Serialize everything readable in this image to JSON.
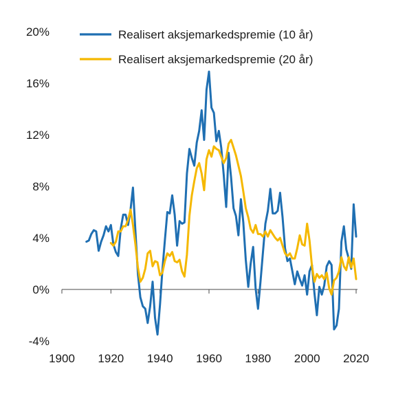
{
  "chart_data": {
    "type": "line",
    "title": "",
    "xlabel": "",
    "ylabel": "",
    "xlim": [
      1900,
      2020
    ],
    "ylim": [
      -4,
      20
    ],
    "x_ticks": [
      1900,
      1920,
      1940,
      1960,
      1980,
      2000,
      2020
    ],
    "x_tick_labels": [
      "1900",
      "1920",
      "1940",
      "1960",
      "1980",
      "2000",
      "2020"
    ],
    "y_ticks": [
      -4,
      0,
      4,
      8,
      12,
      16,
      20
    ],
    "y_tick_labels": [
      "-4%",
      "0%",
      "4%",
      "8%",
      "12%",
      "16%",
      "20%"
    ],
    "grid": false,
    "legend_position": "top",
    "series": [
      {
        "name": "Realisert aksjemarkedspremie (10 år)",
        "color": "#1f6fb2",
        "x": [
          1910,
          1911,
          1912,
          1913,
          1914,
          1915,
          1916,
          1917,
          1918,
          1919,
          1920,
          1921,
          1922,
          1923,
          1924,
          1925,
          1926,
          1927,
          1928,
          1929,
          1930,
          1931,
          1932,
          1933,
          1934,
          1935,
          1936,
          1937,
          1938,
          1939,
          1940,
          1941,
          1942,
          1943,
          1944,
          1945,
          1946,
          1947,
          1948,
          1949,
          1950,
          1951,
          1952,
          1953,
          1954,
          1955,
          1956,
          1957,
          1958,
          1959,
          1960,
          1961,
          1962,
          1963,
          1964,
          1965,
          1966,
          1967,
          1968,
          1969,
          1970,
          1971,
          1972,
          1973,
          1974,
          1975,
          1976,
          1977,
          1978,
          1979,
          1980,
          1981,
          1982,
          1983,
          1984,
          1985,
          1986,
          1987,
          1988,
          1989,
          1990,
          1991,
          1992,
          1993,
          1994,
          1995,
          1996,
          1997,
          1998,
          1999,
          2000,
          2001,
          2002,
          2003,
          2004,
          2005,
          2006,
          2007,
          2008,
          2009,
          2010,
          2011,
          2012,
          2013,
          2014,
          2015,
          2016,
          2017,
          2018,
          2019,
          2020
        ],
        "values": [
          3.7,
          3.8,
          4.3,
          4.6,
          4.5,
          3,
          3.7,
          4.2,
          4.9,
          4.5,
          5,
          3.5,
          2.9,
          2.6,
          4.7,
          5.8,
          5.8,
          5,
          6.2,
          7.9,
          4.5,
          1.2,
          -0.6,
          -1.3,
          -1.5,
          -2.6,
          -1.3,
          0.6,
          -2.2,
          -3.5,
          -1.2,
          1.5,
          3.8,
          6,
          5.9,
          7.3,
          5.8,
          3.4,
          5.3,
          5.1,
          5.2,
          9,
          10.9,
          10.2,
          9.6,
          11.4,
          12.3,
          13.9,
          11.6,
          15.5,
          16.9,
          14.1,
          13.7,
          11.5,
          12.3,
          11,
          8.9,
          6.4,
          10.6,
          8.7,
          6.3,
          5.7,
          4.2,
          7,
          5.2,
          2.3,
          0.2,
          2,
          3.3,
          0.1,
          -1.5,
          0.6,
          2.9,
          5.1,
          6.1,
          7.8,
          5.9,
          5.9,
          6.1,
          7.5,
          5.6,
          3.2,
          2.2,
          2.4,
          1.4,
          0.4,
          1.4,
          0.8,
          0.3,
          1.1,
          -0.4,
          1.4,
          1.9,
          -0.3,
          -2,
          0.2,
          -0.4,
          0.3,
          1.8,
          2.2,
          1.9,
          -3.1,
          -2.8,
          -1.5,
          3.7,
          4.9,
          3.1,
          2.4,
          1.6,
          6.6,
          4.1
        ]
      },
      {
        "name": "Realisert aksjemarkedspremie (20 år)",
        "color": "#f5b800",
        "x": [
          1920,
          1921,
          1922,
          1923,
          1924,
          1925,
          1926,
          1927,
          1928,
          1929,
          1930,
          1931,
          1932,
          1933,
          1934,
          1935,
          1936,
          1937,
          1938,
          1939,
          1940,
          1941,
          1942,
          1943,
          1944,
          1945,
          1946,
          1947,
          1948,
          1949,
          1950,
          1951,
          1952,
          1953,
          1954,
          1955,
          1956,
          1957,
          1958,
          1959,
          1960,
          1961,
          1962,
          1963,
          1964,
          1965,
          1966,
          1967,
          1968,
          1969,
          1970,
          1971,
          1972,
          1973,
          1974,
          1975,
          1976,
          1977,
          1978,
          1979,
          1980,
          1981,
          1982,
          1983,
          1984,
          1985,
          1986,
          1987,
          1988,
          1989,
          1990,
          1991,
          1992,
          1993,
          1994,
          1995,
          1996,
          1997,
          1998,
          1999,
          2000,
          2001,
          2002,
          2003,
          2004,
          2005,
          2006,
          2007,
          2008,
          2009,
          2010,
          2011,
          2012,
          2013,
          2014,
          2015,
          2016,
          2017,
          2018,
          2019,
          2020
        ],
        "values": [
          3.6,
          3.4,
          3.7,
          4.5,
          4.5,
          4.9,
          4.9,
          5.4,
          6.2,
          5,
          3.5,
          1.7,
          0.6,
          0.9,
          1.6,
          2.8,
          3,
          1.8,
          2.2,
          2.1,
          1.1,
          1.3,
          2.2,
          2.8,
          2.6,
          2.9,
          2.2,
          2.1,
          2.3,
          1.4,
          1,
          2.7,
          5.7,
          7.3,
          8.4,
          9.4,
          9.8,
          9,
          7.7,
          10.1,
          10.8,
          10.3,
          11.1,
          10.9,
          10.8,
          10.3,
          9.8,
          10.2,
          11.3,
          11.6,
          11,
          10.4,
          9.6,
          8.8,
          7.6,
          6.3,
          5.6,
          4.7,
          4.4,
          5,
          4.3,
          4.3,
          4.1,
          4.5,
          4.1,
          4.6,
          4.3,
          4,
          3.8,
          4,
          3.4,
          2.8,
          2.6,
          2.8,
          2.4,
          2.4,
          3.2,
          4.2,
          3.5,
          3.4,
          5.1,
          3.8,
          1.8,
          0.6,
          1.2,
          0.9,
          1.1,
          0.8,
          1.3,
          0.1,
          -0.4,
          0.7,
          0.9,
          1.4,
          2.5,
          1.8,
          1.5,
          2.5,
          1.7,
          2.4,
          0.8
        ]
      }
    ]
  }
}
